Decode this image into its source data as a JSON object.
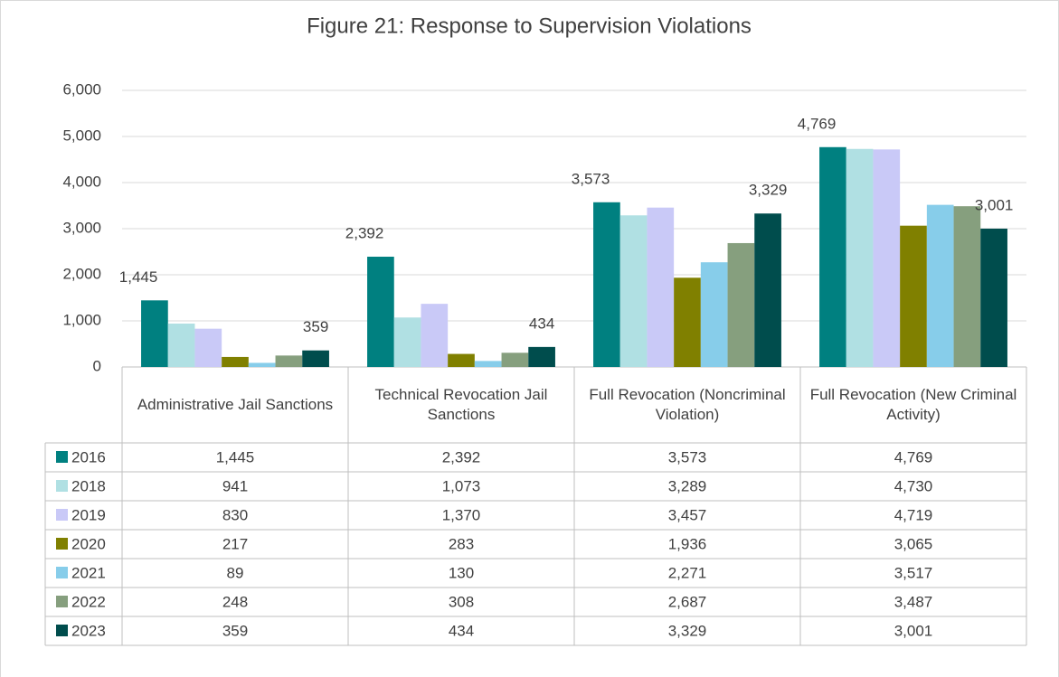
{
  "chart_data": {
    "type": "bar",
    "title": "Figure 21:  Response to Supervision Violations",
    "categories": [
      "Administrative Jail Sanctions",
      "Technical Revocation Jail Sanctions",
      "Full Revocation (Noncriminal Violation)",
      "Full Revocation (New Criminal Activity)"
    ],
    "series": [
      {
        "name": "2016",
        "color": "#008080",
        "data_labels": true,
        "values": [
          1445,
          2392,
          3573,
          4769
        ],
        "value_labels": [
          "1,445",
          "2,392",
          "3,573",
          "4,769"
        ]
      },
      {
        "name": "2018",
        "color": "#b0e0e3",
        "data_labels": false,
        "values": [
          941,
          1073,
          3289,
          4730
        ],
        "value_labels": [
          "941",
          "1,073",
          "3,289",
          "4,730"
        ]
      },
      {
        "name": "2019",
        "color": "#c9c9f7",
        "data_labels": false,
        "values": [
          830,
          1370,
          3457,
          4719
        ],
        "value_labels": [
          "830",
          "1,370",
          "3,457",
          "4,719"
        ]
      },
      {
        "name": "2020",
        "color": "#808000",
        "data_labels": false,
        "values": [
          217,
          283,
          1936,
          3065
        ],
        "value_labels": [
          "217",
          "283",
          "1,936",
          "3,065"
        ]
      },
      {
        "name": "2021",
        "color": "#87cdea",
        "data_labels": false,
        "values": [
          89,
          130,
          2271,
          3517
        ],
        "value_labels": [
          "89",
          "130",
          "2,271",
          "3,517"
        ]
      },
      {
        "name": "2022",
        "color": "#869f7e",
        "data_labels": false,
        "values": [
          248,
          308,
          2687,
          3487
        ],
        "value_labels": [
          "248",
          "308",
          "2,687",
          "3,487"
        ]
      },
      {
        "name": "2023",
        "color": "#004d4d",
        "data_labels": true,
        "values": [
          359,
          434,
          3329,
          3001
        ],
        "value_labels": [
          "359",
          "434",
          "3,329",
          "3,001"
        ]
      }
    ],
    "ylim": [
      0,
      6000
    ],
    "yticks": [
      0,
      {
        "value": 1000,
        "label": "1,000"
      },
      {
        "value": 2000,
        "label": "2,000"
      },
      {
        "value": 3000,
        "label": "3,000"
      },
      {
        "value": 4000,
        "label": "4,000"
      },
      {
        "value": 5000,
        "label": "5,000"
      },
      {
        "value": 6000,
        "label": "6,000"
      }
    ],
    "grid": true
  }
}
